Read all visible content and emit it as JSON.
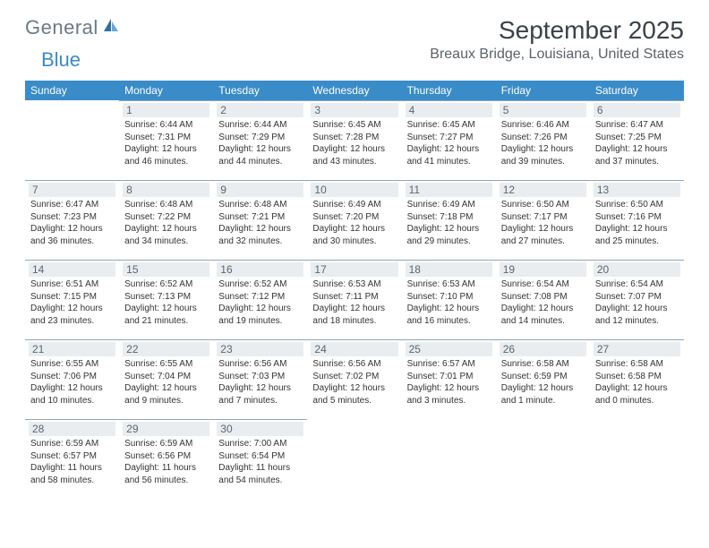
{
  "brand": {
    "part1": "General",
    "part2": "Blue"
  },
  "title": "September 2025",
  "subtitle": "Breaux Bridge, Louisiana, United States",
  "colors": {
    "header_bg": "#3a8cc9",
    "header_text": "#ffffff",
    "daynum_bg": "#e9edf0",
    "daynum_text": "#5a6770",
    "rule": "#90a6b5",
    "title_color": "#3a4148",
    "subtitle_color": "#5a6268",
    "logo_gray": "#6b7a86",
    "logo_blue": "#3b8bc6",
    "sail_dark": "#2f6fa3",
    "sail_light": "#69a8d8"
  },
  "weekdays": [
    "Sunday",
    "Monday",
    "Tuesday",
    "Wednesday",
    "Thursday",
    "Friday",
    "Saturday"
  ],
  "layout": {
    "first_weekday_of_month": 1,
    "days_in_month": 30,
    "weeks": 5
  },
  "days": {
    "1": {
      "sunrise": "6:44 AM",
      "sunset": "7:31 PM",
      "daylight": "12 hours and 46 minutes."
    },
    "2": {
      "sunrise": "6:44 AM",
      "sunset": "7:29 PM",
      "daylight": "12 hours and 44 minutes."
    },
    "3": {
      "sunrise": "6:45 AM",
      "sunset": "7:28 PM",
      "daylight": "12 hours and 43 minutes."
    },
    "4": {
      "sunrise": "6:45 AM",
      "sunset": "7:27 PM",
      "daylight": "12 hours and 41 minutes."
    },
    "5": {
      "sunrise": "6:46 AM",
      "sunset": "7:26 PM",
      "daylight": "12 hours and 39 minutes."
    },
    "6": {
      "sunrise": "6:47 AM",
      "sunset": "7:25 PM",
      "daylight": "12 hours and 37 minutes."
    },
    "7": {
      "sunrise": "6:47 AM",
      "sunset": "7:23 PM",
      "daylight": "12 hours and 36 minutes."
    },
    "8": {
      "sunrise": "6:48 AM",
      "sunset": "7:22 PM",
      "daylight": "12 hours and 34 minutes."
    },
    "9": {
      "sunrise": "6:48 AM",
      "sunset": "7:21 PM",
      "daylight": "12 hours and 32 minutes."
    },
    "10": {
      "sunrise": "6:49 AM",
      "sunset": "7:20 PM",
      "daylight": "12 hours and 30 minutes."
    },
    "11": {
      "sunrise": "6:49 AM",
      "sunset": "7:18 PM",
      "daylight": "12 hours and 29 minutes."
    },
    "12": {
      "sunrise": "6:50 AM",
      "sunset": "7:17 PM",
      "daylight": "12 hours and 27 minutes."
    },
    "13": {
      "sunrise": "6:50 AM",
      "sunset": "7:16 PM",
      "daylight": "12 hours and 25 minutes."
    },
    "14": {
      "sunrise": "6:51 AM",
      "sunset": "7:15 PM",
      "daylight": "12 hours and 23 minutes."
    },
    "15": {
      "sunrise": "6:52 AM",
      "sunset": "7:13 PM",
      "daylight": "12 hours and 21 minutes."
    },
    "16": {
      "sunrise": "6:52 AM",
      "sunset": "7:12 PM",
      "daylight": "12 hours and 19 minutes."
    },
    "17": {
      "sunrise": "6:53 AM",
      "sunset": "7:11 PM",
      "daylight": "12 hours and 18 minutes."
    },
    "18": {
      "sunrise": "6:53 AM",
      "sunset": "7:10 PM",
      "daylight": "12 hours and 16 minutes."
    },
    "19": {
      "sunrise": "6:54 AM",
      "sunset": "7:08 PM",
      "daylight": "12 hours and 14 minutes."
    },
    "20": {
      "sunrise": "6:54 AM",
      "sunset": "7:07 PM",
      "daylight": "12 hours and 12 minutes."
    },
    "21": {
      "sunrise": "6:55 AM",
      "sunset": "7:06 PM",
      "daylight": "12 hours and 10 minutes."
    },
    "22": {
      "sunrise": "6:55 AM",
      "sunset": "7:04 PM",
      "daylight": "12 hours and 9 minutes."
    },
    "23": {
      "sunrise": "6:56 AM",
      "sunset": "7:03 PM",
      "daylight": "12 hours and 7 minutes."
    },
    "24": {
      "sunrise": "6:56 AM",
      "sunset": "7:02 PM",
      "daylight": "12 hours and 5 minutes."
    },
    "25": {
      "sunrise": "6:57 AM",
      "sunset": "7:01 PM",
      "daylight": "12 hours and 3 minutes."
    },
    "26": {
      "sunrise": "6:58 AM",
      "sunset": "6:59 PM",
      "daylight": "12 hours and 1 minute."
    },
    "27": {
      "sunrise": "6:58 AM",
      "sunset": "6:58 PM",
      "daylight": "12 hours and 0 minutes."
    },
    "28": {
      "sunrise": "6:59 AM",
      "sunset": "6:57 PM",
      "daylight": "11 hours and 58 minutes."
    },
    "29": {
      "sunrise": "6:59 AM",
      "sunset": "6:56 PM",
      "daylight": "11 hours and 56 minutes."
    },
    "30": {
      "sunrise": "7:00 AM",
      "sunset": "6:54 PM",
      "daylight": "11 hours and 54 minutes."
    }
  },
  "labels": {
    "sunrise": "Sunrise: ",
    "sunset": "Sunset: ",
    "daylight": "Daylight: "
  }
}
